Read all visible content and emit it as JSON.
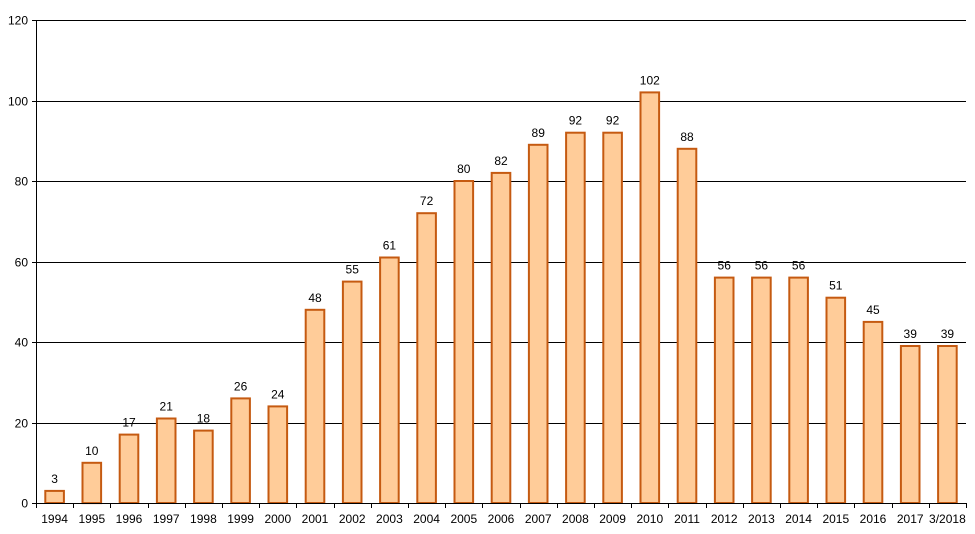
{
  "chart_data": {
    "type": "bar",
    "title": "",
    "xlabel": "",
    "ylabel": "",
    "categories": [
      "1994",
      "1995",
      "1996",
      "1997",
      "1998",
      "1999",
      "2000",
      "2001",
      "2002",
      "2003",
      "2004",
      "2005",
      "2006",
      "2007",
      "2008",
      "2009",
      "2010",
      "2011",
      "2012",
      "2013",
      "2014",
      "2015",
      "2016",
      "2017",
      "3/2018"
    ],
    "values": [
      3,
      10,
      17,
      21,
      18,
      26,
      24,
      48,
      55,
      61,
      72,
      80,
      82,
      89,
      92,
      92,
      102,
      88,
      56,
      56,
      56,
      51,
      45,
      39,
      39
    ],
    "ylim": [
      0,
      120
    ],
    "yticks": [
      0,
      20,
      40,
      60,
      80,
      100,
      120
    ],
    "grid": true,
    "legend": "none",
    "colors": {
      "bar_fill": "#FFCC99",
      "bar_stroke": "#C55A11",
      "grid": "#000000",
      "axis": "#000000"
    },
    "data_labels": true
  }
}
